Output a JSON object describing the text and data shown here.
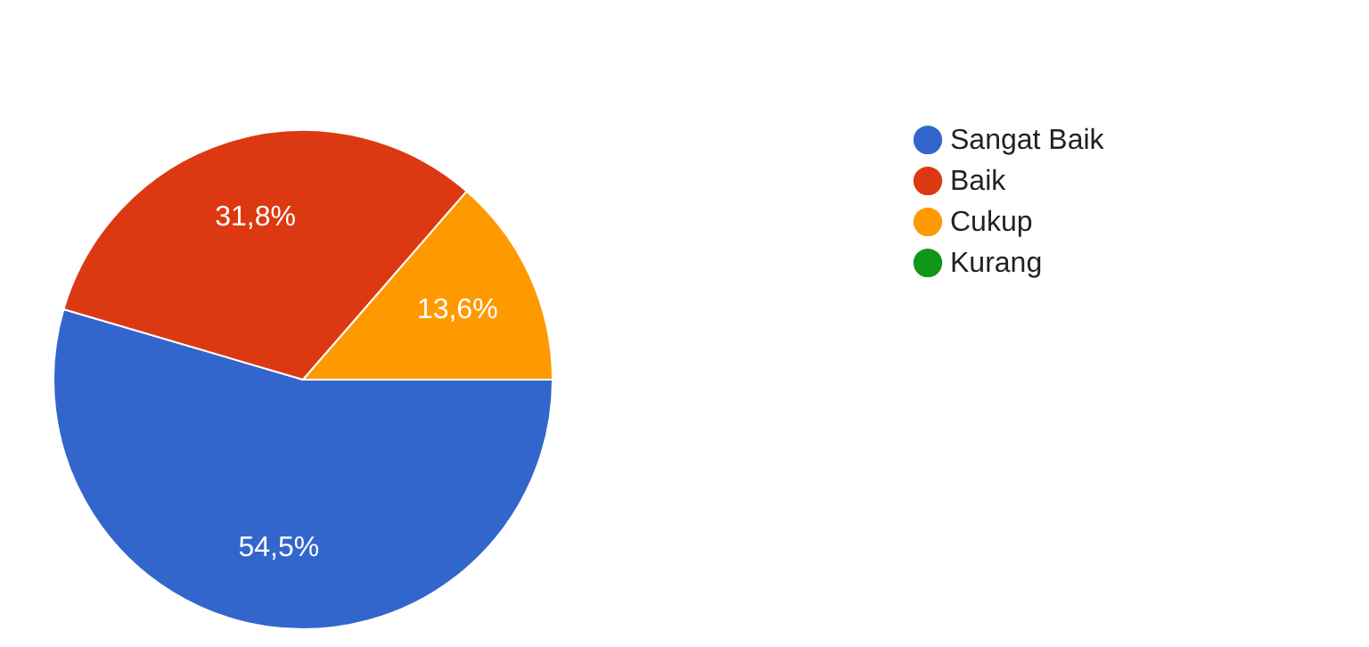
{
  "chart_data": {
    "type": "pie",
    "categories": [
      "Sangat Baik",
      "Baik",
      "Cukup",
      "Kurang"
    ],
    "values": [
      54.5,
      31.8,
      13.6,
      0
    ],
    "colors": [
      "#3366cc",
      "#dc3912",
      "#ff9900",
      "#109618"
    ],
    "value_labels": [
      "54,5%",
      "31,8%",
      "13,6%",
      null
    ],
    "legend": "right"
  }
}
